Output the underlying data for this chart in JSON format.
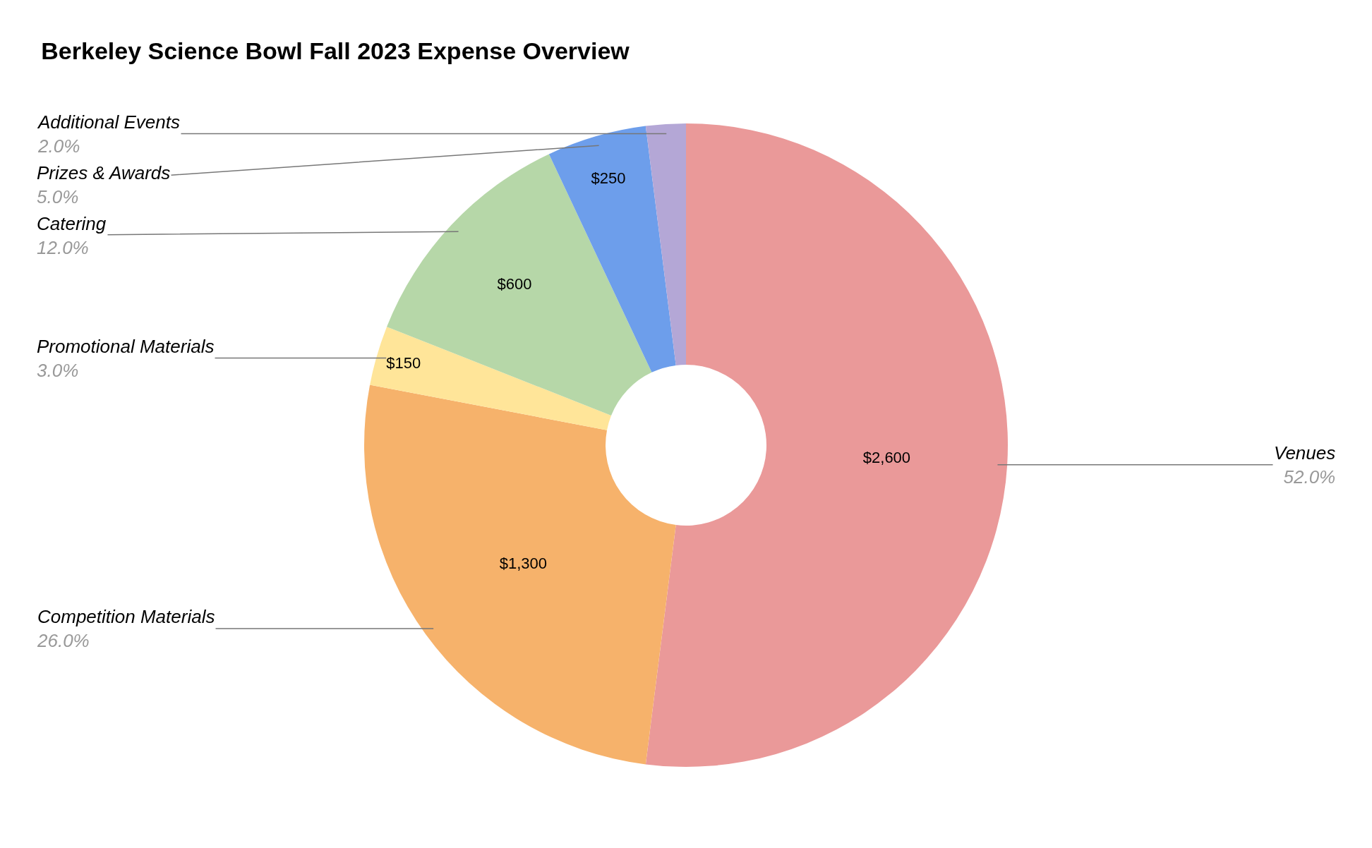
{
  "chart_data": {
    "type": "donut",
    "title": "Berkeley Science Bowl Fall 2023 Expense Overview",
    "categories": [
      "Venues",
      "Competition Materials",
      "Promotional Materials",
      "Catering",
      "Prizes & Awards",
      "Additional Events"
    ],
    "values": [
      2600,
      1300,
      150,
      600,
      250,
      100
    ],
    "value_labels": [
      "$2,600",
      "$1,300",
      "$150",
      "$600",
      "$250",
      null
    ],
    "colors": [
      "#ea9999",
      "#f6b26b",
      "#ffe599",
      "#b6d7a8",
      "#6d9eeb",
      "#b4a7d6"
    ],
    "annotations": [
      "52.0%",
      "26.0%",
      "3.0%",
      "12.0%",
      "5.0%",
      "2.0%"
    ],
    "legend": false
  }
}
